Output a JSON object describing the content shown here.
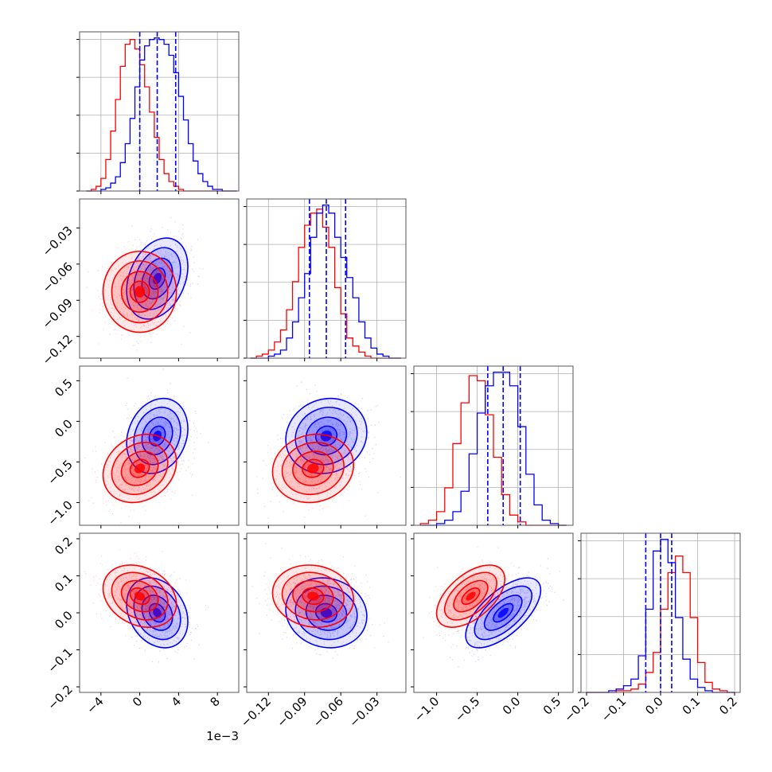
{
  "chart_data": {
    "type": "corner",
    "title": "",
    "variables": [
      {
        "ticks": [
          -4,
          0,
          4,
          8
        ],
        "tick_labels": [
          "−4",
          "0",
          "4",
          "8"
        ],
        "range": [
          -6.2,
          10.2
        ],
        "offset_label": "1e−3"
      },
      {
        "ticks": [
          -0.12,
          -0.09,
          -0.06,
          -0.03
        ],
        "tick_labels": [
          "−0.12",
          "−0.09",
          "−0.06",
          "−0.03"
        ],
        "range": [
          -0.138,
          -0.006
        ],
        "offset_label": ""
      },
      {
        "ticks": [
          -1.0,
          -0.5,
          0.0,
          0.5
        ],
        "tick_labels": [
          "−1.0",
          "−0.5",
          "0.0",
          "0.5"
        ],
        "range": [
          -1.28,
          0.68
        ],
        "offset_label": ""
      },
      {
        "ticks": [
          -0.2,
          -0.1,
          0.0,
          0.1,
          0.2
        ],
        "tick_labels": [
          "−0.2",
          "−0.1",
          "0.0",
          "0.1",
          "0.2"
        ],
        "range": [
          -0.215,
          0.215
        ],
        "offset_label": ""
      }
    ],
    "series": [
      {
        "color": "#0000ff",
        "means": [
          1.8,
          -0.072,
          -0.18,
          0.0
        ],
        "quantiles": [
          [
            0.0,
            1.8,
            3.7
          ],
          [
            -0.086,
            -0.072,
            -0.056
          ],
          [
            -0.37,
            -0.18,
            0.03
          ],
          [
            -0.04,
            0.0,
            0.03
          ]
        ]
      },
      {
        "color": "#ff0000",
        "means": [
          0.0,
          -0.083,
          -0.58,
          0.045
        ],
        "quantiles": []
      }
    ],
    "correlations": {
      "0-1": [
        0.3,
        0.0
      ],
      "0-2": [
        0.2,
        0.2
      ],
      "0-3": [
        -0.25,
        -0.25
      ],
      "1-2": [
        0.1,
        0.1
      ],
      "1-3": [
        -0.1,
        -0.1
      ],
      "2-3": [
        0.65,
        0.55
      ]
    },
    "histograms": [
      {
        "bins": [
          -5.5,
          -5,
          -4.5,
          -4,
          -3.5,
          -3,
          -2.5,
          -2,
          -1.5,
          -1,
          -0.5,
          0,
          0.5,
          1,
          1.5,
          2,
          2.5,
          3,
          3.5,
          4,
          4.5,
          5,
          5.5,
          6,
          6.5,
          7,
          7.5,
          8,
          8.5,
          9,
          9.5,
          10
        ],
        "blue": [
          0,
          0,
          0,
          1,
          2,
          5,
          9,
          18,
          30,
          46,
          66,
          83,
          92,
          96,
          97,
          96,
          93,
          86,
          75,
          60,
          45,
          30,
          19,
          11,
          6,
          3,
          1,
          1,
          0,
          0,
          0
        ],
        "red": [
          0,
          1,
          3,
          8,
          20,
          38,
          58,
          79,
          93,
          96,
          90,
          80,
          66,
          50,
          34,
          20,
          11,
          6,
          3,
          1,
          0,
          0,
          0,
          0,
          0,
          0,
          0,
          0,
          0,
          0,
          0
        ]
      },
      {
        "bins": [
          -0.135,
          -0.13,
          -0.125,
          -0.12,
          -0.115,
          -0.11,
          -0.105,
          -0.1,
          -0.095,
          -0.09,
          -0.085,
          -0.08,
          -0.075,
          -0.07,
          -0.065,
          -0.06,
          -0.055,
          -0.05,
          -0.045,
          -0.04,
          -0.035,
          -0.03,
          -0.025,
          -0.02,
          -0.015,
          -0.01
        ],
        "blue": [
          0,
          0,
          0,
          1,
          2,
          4,
          10,
          18,
          30,
          42,
          60,
          72,
          76,
          72,
          60,
          50,
          40,
          30,
          18,
          10,
          5,
          2,
          1,
          0,
          0
        ],
        "red": [
          0,
          1,
          2,
          4,
          8,
          14,
          24,
          38,
          55,
          66,
          72,
          74,
          65,
          55,
          35,
          22,
          10,
          6,
          3,
          1,
          0,
          0,
          0,
          0,
          0
        ]
      },
      {
        "bins": [
          -1.2,
          -1.1,
          -1.0,
          -0.9,
          -0.8,
          -0.7,
          -0.6,
          -0.5,
          -0.4,
          -0.3,
          -0.2,
          -0.1,
          0.0,
          0.1,
          0.2,
          0.3,
          0.4,
          0.5,
          0.6
        ],
        "blue": [
          0,
          0,
          1,
          3,
          8,
          20,
          42,
          66,
          82,
          90,
          90,
          82,
          58,
          30,
          12,
          3,
          1,
          0
        ],
        "red": [
          1,
          3,
          8,
          22,
          48,
          72,
          88,
          85,
          65,
          40,
          18,
          6,
          2,
          0,
          0,
          0,
          0,
          0
        ]
      },
      {
        "bins": [
          -0.2,
          -0.18,
          -0.16,
          -0.14,
          -0.12,
          -0.1,
          -0.08,
          -0.06,
          -0.04,
          -0.02,
          0.0,
          0.02,
          0.04,
          0.06,
          0.08,
          0.1,
          0.12,
          0.14,
          0.16,
          0.18,
          0.2
        ],
        "blue": [
          0,
          0,
          0,
          1,
          2,
          4,
          8,
          22,
          50,
          85,
          92,
          78,
          45,
          20,
          8,
          3,
          1,
          0,
          0,
          0
        ],
        "red": [
          0,
          0,
          0,
          0,
          1,
          1,
          2,
          5,
          12,
          24,
          50,
          72,
          82,
          72,
          45,
          18,
          6,
          2,
          1,
          0
        ]
      }
    ]
  }
}
